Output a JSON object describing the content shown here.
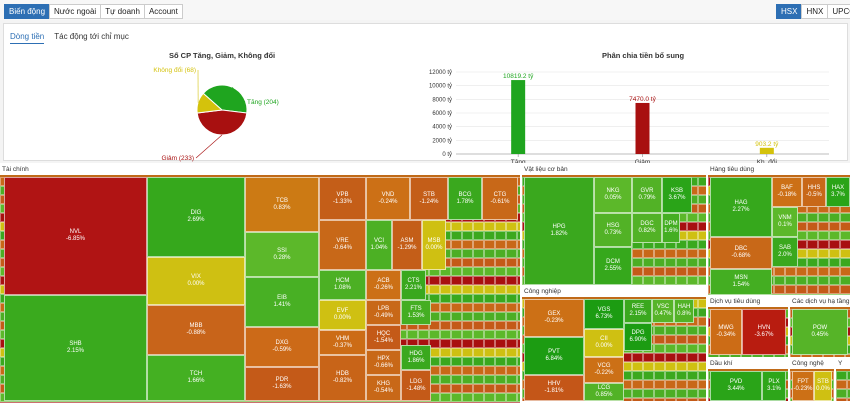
{
  "top_tabs": [
    "Biến động",
    "Nước ngoài",
    "Tự doanh",
    "Account"
  ],
  "exchange_tabs": [
    "HSX",
    "HNX",
    "UPCOM"
  ],
  "sub_tabs": [
    "Dòng tiền",
    "Tác động tới chỉ mục"
  ],
  "colors": {
    "up": "#1fa51f",
    "down": "#a81010",
    "flat": "#d4c20c"
  },
  "chart_data": [
    {
      "type": "pie",
      "title": "Số CP Tăng, Giảm, Không đổi",
      "slices": [
        {
          "label": "Tăng (204)",
          "value": 204,
          "color": "#1fa51f"
        },
        {
          "label": "Giảm (233)",
          "value": 233,
          "color": "#a81010"
        },
        {
          "label": "Không đổi (68)",
          "value": 68,
          "color": "#d4c20c"
        }
      ]
    },
    {
      "type": "bar",
      "title": "Phân chia tiền bổ sung",
      "categories": [
        "Tăng",
        "Giảm",
        "Kh. đổi"
      ],
      "values": [
        10819.2,
        7470.0,
        903.2
      ],
      "value_labels": [
        "10819.2 tỷ",
        "7470.0 tỷ",
        "903.2 tỷ"
      ],
      "colors": [
        "#1fa51f",
        "#a81010",
        "#d4c20c"
      ],
      "ylim": [
        0,
        12000
      ],
      "yticks": [
        "0 tỷ",
        "2000 tỷ",
        "4000 tỷ",
        "6000 tỷ",
        "8000 tỷ",
        "10000 tỷ",
        "12000 tỷ"
      ],
      "ytick_values": [
        0,
        2000,
        4000,
        6000,
        8000,
        10000,
        12000
      ]
    }
  ],
  "treemap": {
    "groups": [
      {
        "name": "Tài chính",
        "cells": [
          [
            "NVL",
            "-6.85%",
            "#b01414"
          ],
          [
            "SHB",
            "2.15%",
            "#3aaa1e"
          ],
          [
            "DIG",
            "2.69%",
            "#36a81c"
          ],
          [
            "VIX",
            "0.00%",
            "#cfc012"
          ],
          [
            "MBB",
            "-0.88%",
            "#c8641a"
          ],
          [
            "TCH",
            "1.66%",
            "#44b022"
          ],
          [
            "TCB",
            "0.83%",
            "#cc7a14"
          ],
          [
            "SSI",
            "0.28%",
            "#5cb82a"
          ],
          [
            "EIB",
            "1.41%",
            "#48b024"
          ],
          [
            "DXG",
            "-0.59%",
            "#cc6a18"
          ],
          [
            "PDR",
            "-1.63%",
            "#c45a18"
          ],
          [
            "VPB",
            "-1.33%",
            "#c45e18"
          ],
          [
            "VND",
            "-0.24%",
            "#cc7016"
          ],
          [
            "STB",
            "-1.24%",
            "#c45e18"
          ],
          [
            "BCG",
            "1.78%",
            "#3aa81e"
          ],
          [
            "CTG",
            "-0.61%",
            "#c86818"
          ],
          [
            "VRE",
            "-0.64%",
            "#c86818"
          ],
          [
            "VCI",
            "1.04%",
            "#4cb024"
          ],
          [
            "ASM",
            "-1.29%",
            "#c45e18"
          ],
          [
            "MSB",
            "0.00%",
            "#cfc012"
          ],
          [
            "HCM",
            "1.08%",
            "#4cb024"
          ],
          [
            "ACB",
            "-0.26%",
            "#cc7016"
          ],
          [
            "CTS",
            "2.21%",
            "#3aa81e"
          ],
          [
            "EVF",
            "0.00%",
            "#cfc012"
          ],
          [
            "LPB",
            "-0.49%",
            "#c86818"
          ],
          [
            "FTS",
            "1.53%",
            "#44ae22"
          ],
          [
            "VHM",
            "-0.37%",
            "#cc6c16"
          ],
          [
            "HQC",
            "-1.54%",
            "#c45a18"
          ],
          [
            "HPX",
            "-0.66%",
            "#c86818"
          ],
          [
            "HDG",
            "1.86%",
            "#3aa81e"
          ],
          [
            "HDB",
            "-0.82%",
            "#c86418"
          ],
          [
            "KHG",
            "-0.54%",
            "#c86818"
          ],
          [
            "LDG",
            "-1.48%",
            "#c45a18"
          ]
        ]
      },
      {
        "name": "Vật liệu cơ bản",
        "cells": [
          [
            "HPG",
            "1.82%",
            "#3aa81e"
          ],
          [
            "NKG",
            "0.05%",
            "#5cb82a"
          ],
          [
            "HSG",
            "0.73%",
            "#52b226"
          ],
          [
            "DCM",
            "2.55%",
            "#36a81c"
          ],
          [
            "GVR",
            "0.79%",
            "#52b226"
          ],
          [
            "KSB",
            "3.67%",
            "#2aa418"
          ],
          [
            "DGC",
            "0.82%",
            "#52b226"
          ],
          [
            "DPM",
            "1.6%",
            "#44ae22"
          ]
        ]
      },
      {
        "name": "Công nghiệp",
        "cells": [
          [
            "GEX",
            "-0.23%",
            "#cc7016"
          ],
          [
            "PVT",
            "6.84%",
            "#1c9c12"
          ],
          [
            "HHV",
            "-1.81%",
            "#c45618"
          ],
          [
            "VGS",
            "6.73%",
            "#1c9c12"
          ],
          [
            "CII",
            "0.00%",
            "#cfc012"
          ],
          [
            "VCG",
            "-0.22%",
            "#cc7016"
          ],
          [
            "LCG",
            "0.85%",
            "#52b226"
          ],
          [
            "REE",
            "2.15%",
            "#3aa81e"
          ],
          [
            "DPG",
            "6.90%",
            "#1c9c12"
          ],
          [
            "VSC",
            "0.47%",
            "#56b428"
          ],
          [
            "HAH",
            "0.8%",
            "#52b226"
          ]
        ]
      },
      {
        "name": "Hàng tiêu dùng",
        "cells": [
          [
            "HAG",
            "2.27%",
            "#36a81c"
          ],
          [
            "DBC",
            "-0.68%",
            "#c86818"
          ],
          [
            "MSN",
            "1.54%",
            "#44ae22"
          ],
          [
            "BAF",
            "-0.18%",
            "#cc7016"
          ],
          [
            "HHS",
            "-0.5%",
            "#c86818"
          ],
          [
            "HAX",
            "3.7%",
            "#2aa418"
          ],
          [
            "VNM",
            "0.1%",
            "#5cb82a"
          ],
          [
            "SAB",
            "2.0%",
            "#3aa81e"
          ]
        ]
      },
      {
        "name": "Dịch vụ tiêu dùng",
        "cells": [
          [
            "MWG",
            "-0.34%",
            "#cc6c16"
          ],
          [
            "HVN",
            "-3.67%",
            "#b81c10"
          ]
        ]
      },
      {
        "name": "Các dịch vụ hạ tầng",
        "cells": [
          [
            "POW",
            "0.45%",
            "#56b428"
          ]
        ]
      },
      {
        "name": "Dầu khí",
        "cells": [
          [
            "PVD",
            "3.44%",
            "#2aa418"
          ],
          [
            "PLX",
            "3.1%",
            "#2ea61a"
          ]
        ]
      },
      {
        "name": "Công nghệ",
        "cells": [
          [
            "FPT",
            "-0.23%",
            "#cc7016"
          ],
          [
            "STB",
            "0.0%",
            "#cfc012"
          ]
        ]
      },
      {
        "name": "Y",
        "cells": []
      }
    ]
  }
}
